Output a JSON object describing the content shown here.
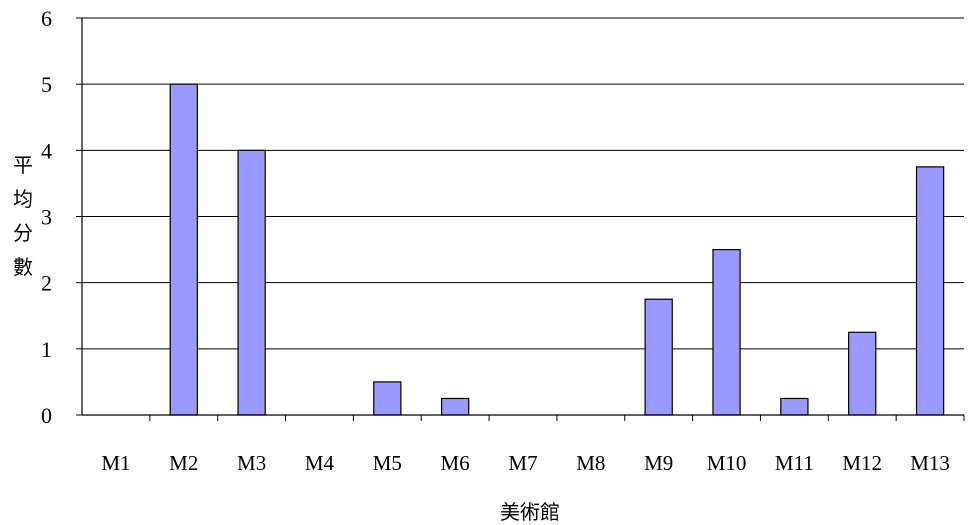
{
  "chart_data": {
    "type": "bar",
    "title": "",
    "xlabel": "美術館",
    "ylabel_chars": [
      "平",
      "均",
      "分",
      "數"
    ],
    "categories": [
      "M1",
      "M2",
      "M3",
      "M4",
      "M5",
      "M6",
      "M7",
      "M8",
      "M9",
      "M10",
      "M11",
      "M12",
      "M13"
    ],
    "values": [
      0,
      5,
      4,
      0,
      0.5,
      0.25,
      0,
      0,
      1.75,
      2.5,
      0.25,
      1.25,
      3.75
    ],
    "ylim": [
      0,
      6
    ],
    "yticks": [
      "0",
      "1",
      "2",
      "3",
      "4",
      "5",
      "6"
    ],
    "grid": true,
    "bar_color": "#9999ff",
    "bar_edge_color": "#000000"
  }
}
